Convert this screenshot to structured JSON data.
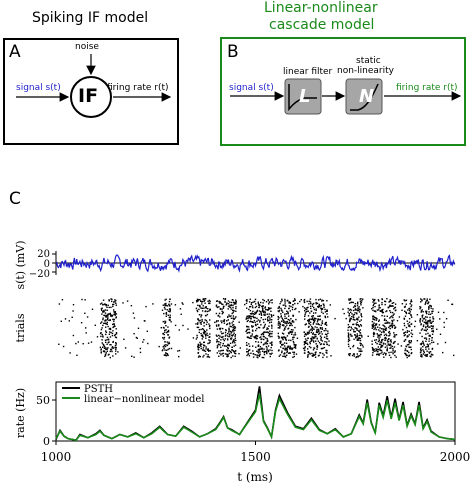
{
  "colors": {
    "signal": "#1f1fcc",
    "lnmodel": "#1a8a1a",
    "psth": "#000000",
    "filter_box": "#a6a6a6"
  },
  "panelA": {
    "title": "Spiking IF model",
    "letter": "A",
    "noise_label": "noise",
    "signal_label": "signal s(t)",
    "model_label": "IF",
    "output_label": "firing rate r(t)"
  },
  "panelB": {
    "title_line1": "Linear-nonlinear",
    "title_line2": "cascade model",
    "letter": "B",
    "filter_label": "linear filter",
    "static_line1": "static",
    "static_line2": "non-linearity",
    "filter_symbol": "L",
    "nonlin_symbol": "N",
    "signal_label": "signal s(t)",
    "output_label": "firing rate r(t)"
  },
  "panelC": {
    "letter": "C",
    "legend": {
      "psth": "PSTH",
      "model": "linear−nonlinear model"
    },
    "chart_data": [
      {
        "type": "line",
        "ylabel": "s(t)  (mV)",
        "yticks": [
          "20",
          "0",
          "−20"
        ],
        "ylim": [
          -20,
          20
        ],
        "xlim": [
          1000,
          2000
        ],
        "series": [
          {
            "name": "",
            "approx": "noisy signal fluctuating around 0 mV, amplitude about ±15 mV"
          }
        ]
      },
      {
        "type": "scatter",
        "ylabel": "trials",
        "xlim": [
          1000,
          2000
        ],
        "dense_bands_ms": [
          1110,
          1150,
          1265,
          1285,
          1350,
          1385,
          1400,
          1450,
          1475,
          1540,
          1555,
          1600,
          1620,
          1680,
          1730,
          1765,
          1790,
          1850,
          1870,
          1890,
          1910,
          1945
        ]
      },
      {
        "type": "line",
        "ylabel": "rate (Hz)",
        "xlabel": "t  (ms)",
        "xticks": [
          "1000",
          "1500",
          "2000"
        ],
        "yticks": [
          "50",
          "0"
        ],
        "xlim": [
          1000,
          2000
        ],
        "ylim": [
          0,
          70
        ],
        "legend_position": "top-left",
        "series": [
          {
            "name": "PSTH",
            "x": [
              1000,
              1010,
              1020,
              1030,
              1040,
              1050,
              1060,
              1080,
              1100,
              1110,
              1120,
              1140,
              1160,
              1180,
              1200,
              1220,
              1240,
              1260,
              1270,
              1280,
              1300,
              1320,
              1340,
              1360,
              1380,
              1400,
              1410,
              1420,
              1430,
              1440,
              1460,
              1480,
              1500,
              1510,
              1520,
              1530,
              1540,
              1550,
              1560,
              1580,
              1600,
              1620,
              1640,
              1660,
              1680,
              1700,
              1720,
              1740,
              1760,
              1770,
              1780,
              1790,
              1800,
              1810,
              1820,
              1830,
              1840,
              1850,
              1860,
              1870,
              1880,
              1890,
              1900,
              1910,
              1920,
              1930,
              1940,
              1960,
              1980,
              2000
            ],
            "values": [
              2,
              13,
              6,
              3,
              2,
              1,
              8,
              4,
              9,
              13,
              7,
              3,
              8,
              5,
              10,
              4,
              10,
              18,
              13,
              8,
              6,
              18,
              12,
              5,
              9,
              15,
              22,
              30,
              16,
              14,
              8,
              23,
              38,
              67,
              25,
              16,
              5,
              38,
              56,
              35,
              18,
              15,
              28,
              14,
              9,
              15,
              5,
              9,
              32,
              22,
              51,
              23,
              10,
              47,
              31,
              55,
              29,
              52,
              26,
              48,
              19,
              33,
              21,
              48,
              16,
              26,
              12,
              5,
              3,
              2
            ]
          },
          {
            "name": "linear−nonlinear model",
            "x": [
              1000,
              1010,
              1020,
              1030,
              1040,
              1050,
              1060,
              1080,
              1100,
              1110,
              1120,
              1140,
              1160,
              1180,
              1200,
              1220,
              1240,
              1260,
              1270,
              1280,
              1300,
              1320,
              1340,
              1360,
              1380,
              1400,
              1410,
              1420,
              1430,
              1440,
              1460,
              1480,
              1500,
              1510,
              1520,
              1530,
              1540,
              1550,
              1560,
              1580,
              1600,
              1620,
              1640,
              1660,
              1680,
              1700,
              1720,
              1740,
              1760,
              1770,
              1780,
              1790,
              1800,
              1810,
              1820,
              1830,
              1840,
              1850,
              1860,
              1870,
              1880,
              1890,
              1900,
              1910,
              1920,
              1930,
              1940,
              1960,
              1980,
              2000
            ],
            "values": [
              3,
              12,
              6,
              3,
              2,
              1,
              7,
              4,
              8,
              12,
              7,
              3,
              8,
              5,
              9,
              4,
              9,
              17,
              12,
              8,
              6,
              17,
              11,
              5,
              9,
              14,
              21,
              29,
              16,
              13,
              8,
              22,
              36,
              58,
              24,
              15,
              5,
              36,
              52,
              33,
              17,
              14,
              26,
              13,
              9,
              14,
              5,
              9,
              30,
              21,
              47,
              22,
              10,
              44,
              29,
              50,
              27,
              47,
              25,
              44,
              18,
              31,
              20,
              44,
              15,
              24,
              11,
              5,
              3,
              2
            ]
          }
        ]
      }
    ]
  }
}
